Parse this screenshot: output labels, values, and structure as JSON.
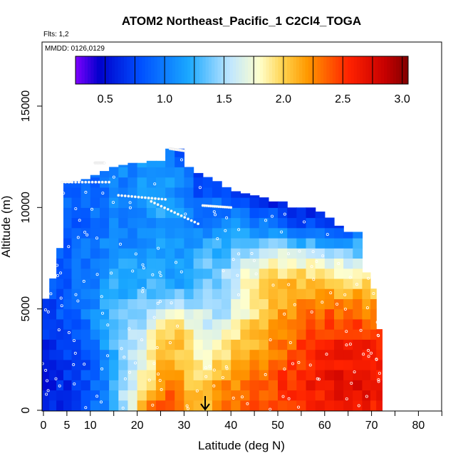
{
  "chart_data": {
    "type": "heatmap",
    "title": "ATOM2 Northeast_Pacific_1 C2Cl4_TOGA",
    "notes": [
      "Flts: 1,2",
      "MMDD: 0126,0129"
    ],
    "xlabel": "Latitude (deg N)",
    "ylabel": "Altitude (m)",
    "xlim": [
      0,
      85
    ],
    "ylim": [
      0,
      17800
    ],
    "x_ticks": [
      0,
      5,
      10,
      20,
      30,
      40,
      50,
      60,
      70,
      80
    ],
    "x_minor_ticks": [
      15,
      25,
      35,
      45,
      55,
      65,
      75,
      85
    ],
    "y_ticks": [
      0,
      5000,
      10000,
      15000
    ],
    "colorbar": {
      "range": [
        0.25,
        3.05
      ],
      "ticks": [
        0.5,
        1.0,
        1.5,
        2.0,
        2.5,
        3.0
      ],
      "tick_labels": [
        "0.5",
        "1.0",
        "1.5",
        "2.0",
        "2.5",
        "3.0"
      ],
      "colors": [
        "#7f00ff",
        "#0000cc",
        "#0050ff",
        "#1aa8ff",
        "#bfe6ff",
        "#ffffcc",
        "#ffd24d",
        "#ff9900",
        "#ff2200",
        "#c80000",
        "#800000"
      ],
      "color_positions": [
        0.25,
        0.45,
        0.8,
        1.2,
        1.55,
        1.8,
        2.0,
        2.2,
        2.55,
        2.85,
        3.05
      ]
    },
    "columns": [
      {
        "lat": 0.5,
        "top": 5500
      },
      {
        "lat": 2,
        "top": 6500
      },
      {
        "lat": 3.5,
        "top": 8000
      },
      {
        "lat": 5,
        "top": 11200
      },
      {
        "lat": 7,
        "top": 11300
      },
      {
        "lat": 9,
        "top": 11400
      },
      {
        "lat": 11,
        "top": 11600
      },
      {
        "lat": 13,
        "top": 11800
      },
      {
        "lat": 15,
        "top": 12000
      },
      {
        "lat": 17,
        "top": 12100
      },
      {
        "lat": 19,
        "top": 12200
      },
      {
        "lat": 21,
        "top": 12200
      },
      {
        "lat": 23,
        "top": 12300
      },
      {
        "lat": 25,
        "top": 12300
      },
      {
        "lat": 27,
        "top": 12900
      },
      {
        "lat": 29,
        "top": 12900
      },
      {
        "lat": 31,
        "top": 12000
      },
      {
        "lat": 33,
        "top": 11700
      },
      {
        "lat": 35,
        "top": 11500
      },
      {
        "lat": 37,
        "top": 11300
      },
      {
        "lat": 39,
        "top": 11000
      },
      {
        "lat": 41,
        "top": 10800
      },
      {
        "lat": 43,
        "top": 10700
      },
      {
        "lat": 45,
        "top": 10600
      },
      {
        "lat": 47,
        "top": 10500
      },
      {
        "lat": 49,
        "top": 10300
      },
      {
        "lat": 51,
        "top": 10300
      },
      {
        "lat": 53,
        "top": 10000
      },
      {
        "lat": 55,
        "top": 10000
      },
      {
        "lat": 57,
        "top": 10000
      },
      {
        "lat": 59,
        "top": 9800
      },
      {
        "lat": 61,
        "top": 9500
      },
      {
        "lat": 63,
        "top": 9100
      },
      {
        "lat": 65,
        "top": 8800
      },
      {
        "lat": 67,
        "top": 8800
      },
      {
        "lat": 69,
        "top": 6800
      },
      {
        "lat": 70.5,
        "top": 6000
      },
      {
        "lat": 71.5,
        "top": 4000
      }
    ],
    "field_anchors_lat": [
      0,
      8,
      14,
      22,
      26,
      30,
      34,
      38,
      44,
      50,
      56,
      62,
      68,
      72
    ],
    "field_anchors_alt": [
      0,
      1500,
      3000,
      4500,
      6000,
      7500,
      9000,
      10500,
      12000,
      13000
    ],
    "field_values": [
      [
        0.6,
        0.7,
        1.15,
        2.25,
        2.55,
        2.3,
        2.1,
        2.35,
        2.4,
        2.5,
        2.55,
        2.6,
        2.65,
        2.6
      ],
      [
        0.55,
        0.7,
        1.1,
        1.9,
        2.2,
        2.1,
        1.95,
        2.2,
        2.3,
        2.45,
        2.6,
        2.7,
        2.7,
        2.65
      ],
      [
        0.6,
        0.8,
        1.2,
        1.75,
        2.15,
        2.05,
        1.7,
        1.9,
        2.15,
        2.3,
        2.5,
        2.6,
        2.65,
        2.6
      ],
      [
        0.7,
        0.9,
        1.25,
        1.55,
        1.95,
        1.8,
        1.65,
        1.55,
        1.9,
        2.15,
        2.35,
        2.45,
        2.35,
        2.3
      ],
      [
        0.75,
        0.9,
        1.2,
        1.3,
        1.2,
        1.25,
        1.4,
        1.45,
        1.9,
        2.1,
        2.15,
        2.1,
        2.05,
        2.0
      ],
      [
        0.8,
        0.95,
        1.1,
        1.15,
        1.1,
        1.2,
        1.3,
        1.35,
        1.6,
        1.8,
        1.7,
        1.6,
        1.5,
        1.4
      ],
      [
        0.8,
        0.9,
        1.0,
        1.05,
        1.2,
        1.1,
        1.0,
        1.1,
        1.1,
        0.95,
        0.8,
        0.75,
        0.9,
        0.9
      ],
      [
        0.85,
        0.9,
        1.0,
        1.1,
        1.25,
        1.0,
        0.8,
        0.9,
        0.7,
        0.55,
        0.5,
        0.4,
        0.5,
        0.5
      ],
      [
        0.8,
        0.9,
        1.0,
        1.1,
        1.2,
        1.0,
        0.6,
        0.55,
        0.5,
        0.45,
        0.45,
        0.4,
        0.45,
        0.45
      ],
      [
        0.8,
        0.9,
        1.0,
        1.1,
        1.2,
        0.6,
        0.55,
        0.5,
        0.45,
        0.45,
        0.45,
        0.4,
        0.45,
        0.45
      ]
    ]
  }
}
